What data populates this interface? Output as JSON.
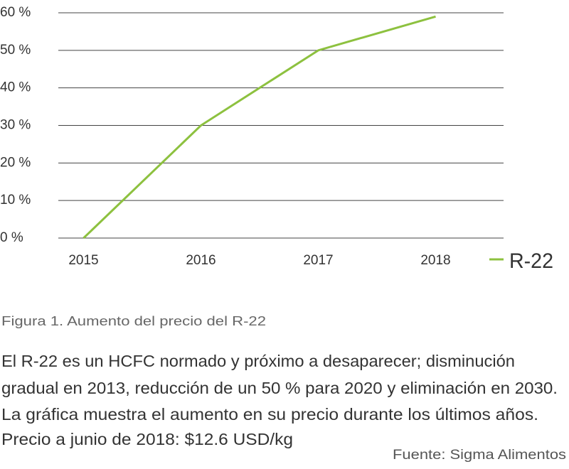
{
  "chart_data": {
    "type": "line",
    "categories": [
      "2015",
      "2016",
      "2017",
      "2018"
    ],
    "series": [
      {
        "name": "R-22",
        "color": "#8dc13f",
        "values": [
          0,
          30,
          50,
          59
        ]
      }
    ],
    "ylim": [
      0,
      60
    ],
    "yticks": [
      {
        "value": 0,
        "label": "0 %"
      },
      {
        "value": 10,
        "label": "10 %"
      },
      {
        "value": 20,
        "label": "20 %"
      },
      {
        "value": 30,
        "label": "30 %"
      },
      {
        "value": 40,
        "label": "40 %"
      },
      {
        "value": 50,
        "label": "50 %"
      },
      {
        "value": 60,
        "label": "60 %"
      }
    ],
    "grid": true,
    "legend": "right"
  },
  "caption": "Figura 1. Aumento del precio del R-22",
  "description": [
    "El R-22 es un HCFC normado y próximo a desaparecer; disminución",
    "gradual en 2013, reducción de un 50 % para 2020 y eliminación en 2030.",
    "La gráfica muestra el aumento en su precio durante los últimos años.",
    "Precio a junio de 2018: $12.6 USD/kg"
  ],
  "source": "Fuente: Sigma Alimentos"
}
